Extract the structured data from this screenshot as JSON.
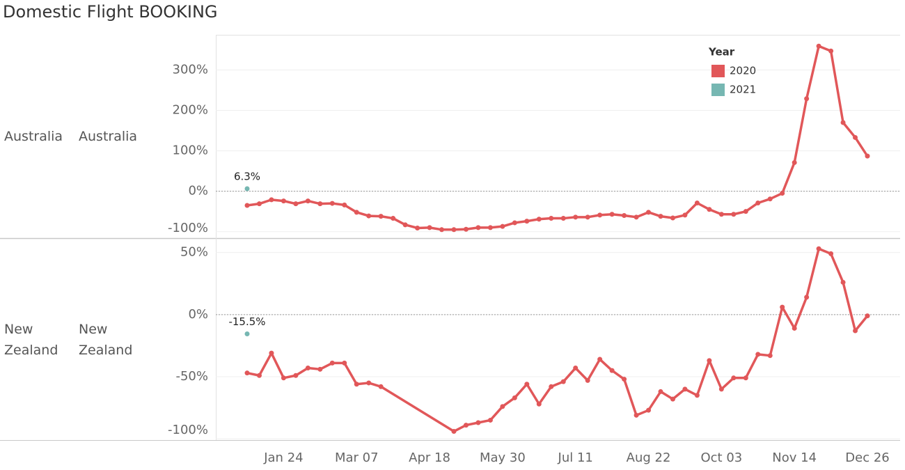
{
  "chart_data": [
    {
      "type": "line",
      "title": "Domestic Flight BOOKING",
      "row_labels": [
        "Australia",
        "Australia"
      ],
      "legend_title": "Year",
      "ylim": [
        -116,
        387
      ],
      "yticks": [
        {
          "value": -100,
          "label": "-100%"
        },
        {
          "value": 0,
          "label": "0%"
        },
        {
          "value": 100,
          "label": "100%"
        },
        {
          "value": 200,
          "label": "200%"
        },
        {
          "value": 300,
          "label": "300%"
        }
      ],
      "grid": true,
      "series": [
        {
          "name": "2020",
          "color": "#e15759",
          "x": [
            "Jan 03",
            "Jan 10",
            "Jan 17",
            "Jan 24",
            "Jan 31",
            "Feb 07",
            "Feb 14",
            "Feb 21",
            "Feb 28",
            "Mar 07",
            "Mar 14",
            "Mar 21",
            "Mar 28",
            "Apr 04",
            "Apr 11",
            "Apr 18",
            "Apr 25",
            "May 02",
            "May 09",
            "May 16",
            "May 23",
            "May 30",
            "Jun 06",
            "Jun 13",
            "Jun 20",
            "Jun 27",
            "Jul 04",
            "Jul 11",
            "Jul 18",
            "Jul 25",
            "Aug 01",
            "Aug 08",
            "Aug 15",
            "Aug 22",
            "Aug 29",
            "Sep 05",
            "Sep 12",
            "Sep 19",
            "Sep 26",
            "Oct 03",
            "Oct 10",
            "Oct 17",
            "Oct 24",
            "Oct 31",
            "Nov 07",
            "Nov 14",
            "Nov 21",
            "Nov 28",
            "Dec 05",
            "Dec 12",
            "Dec 19",
            "Dec 26"
          ],
          "values": [
            -35,
            -31,
            -21,
            -24,
            -31,
            -24,
            -31,
            -30,
            -34,
            -52,
            -61,
            -62,
            -67,
            -83,
            -91,
            -90,
            -95,
            -95,
            -94,
            -90,
            -90,
            -87,
            -78,
            -74,
            -69,
            -67,
            -67,
            -64,
            -64,
            -59,
            -57,
            -60,
            -64,
            -52,
            -62,
            -66,
            -59,
            -29,
            -45,
            -57,
            -57,
            -50,
            -29,
            -19,
            -5,
            71,
            229,
            359,
            347,
            170,
            133,
            87
          ]
        },
        {
          "name": "2021",
          "color": "#76b7b2",
          "x": [
            "Jan 03"
          ],
          "values": [
            6.3
          ],
          "value_labels": [
            "6.3%"
          ]
        }
      ]
    },
    {
      "type": "line",
      "row_labels": [
        "New Zealand",
        "New Zealand"
      ],
      "ylim": [
        -101,
        61
      ],
      "yticks": [
        {
          "value": -100,
          "label": "-100%"
        },
        {
          "value": -50,
          "label": "-50%"
        },
        {
          "value": 0,
          "label": "0%"
        },
        {
          "value": 50,
          "label": "50%"
        }
      ],
      "xticks": [
        "Jan 24",
        "Mar 07",
        "Apr 18",
        "May 30",
        "Jul 11",
        "Aug 22",
        "Oct 03",
        "Nov 14",
        "Dec 26"
      ],
      "grid": true,
      "series": [
        {
          "name": "2020",
          "color": "#e15759",
          "x": [
            "Jan 03",
            "Jan 10",
            "Jan 17",
            "Jan 24",
            "Jan 31",
            "Feb 07",
            "Feb 14",
            "Feb 21",
            "Feb 28",
            "Mar 07",
            "Mar 14",
            "Mar 21",
            "May 02",
            "May 09",
            "May 16",
            "May 23",
            "May 30",
            "Jun 06",
            "Jun 13",
            "Jun 20",
            "Jun 27",
            "Jul 04",
            "Jul 11",
            "Jul 18",
            "Jul 25",
            "Aug 01",
            "Aug 08",
            "Aug 15",
            "Aug 22",
            "Aug 29",
            "Sep 05",
            "Sep 12",
            "Sep 19",
            "Sep 26",
            "Oct 03",
            "Oct 10",
            "Oct 17",
            "Oct 24",
            "Oct 31",
            "Nov 07",
            "Nov 14",
            "Nov 21",
            "Nov 28",
            "Dec 05",
            "Dec 12",
            "Dec 19",
            "Dec 26"
          ],
          "values": [
            -47,
            -49,
            -31,
            -51,
            -49,
            -43,
            -44,
            -39,
            -39,
            -56,
            -55,
            -58,
            -94,
            -89,
            -87,
            -85,
            -74,
            -67,
            -56,
            -72,
            -58,
            -54,
            -43,
            -53,
            -36,
            -45,
            -52,
            -81,
            -77,
            -62,
            -68,
            -60,
            -65,
            -37,
            -60,
            -51,
            -51,
            -32,
            -33,
            6,
            -11,
            14,
            53,
            49,
            26,
            -13,
            -1
          ]
        },
        {
          "name": "2021",
          "color": "#76b7b2",
          "x": [
            "Jan 03"
          ],
          "values": [
            -15.5
          ],
          "value_labels": [
            "-15.5%"
          ]
        }
      ]
    }
  ]
}
